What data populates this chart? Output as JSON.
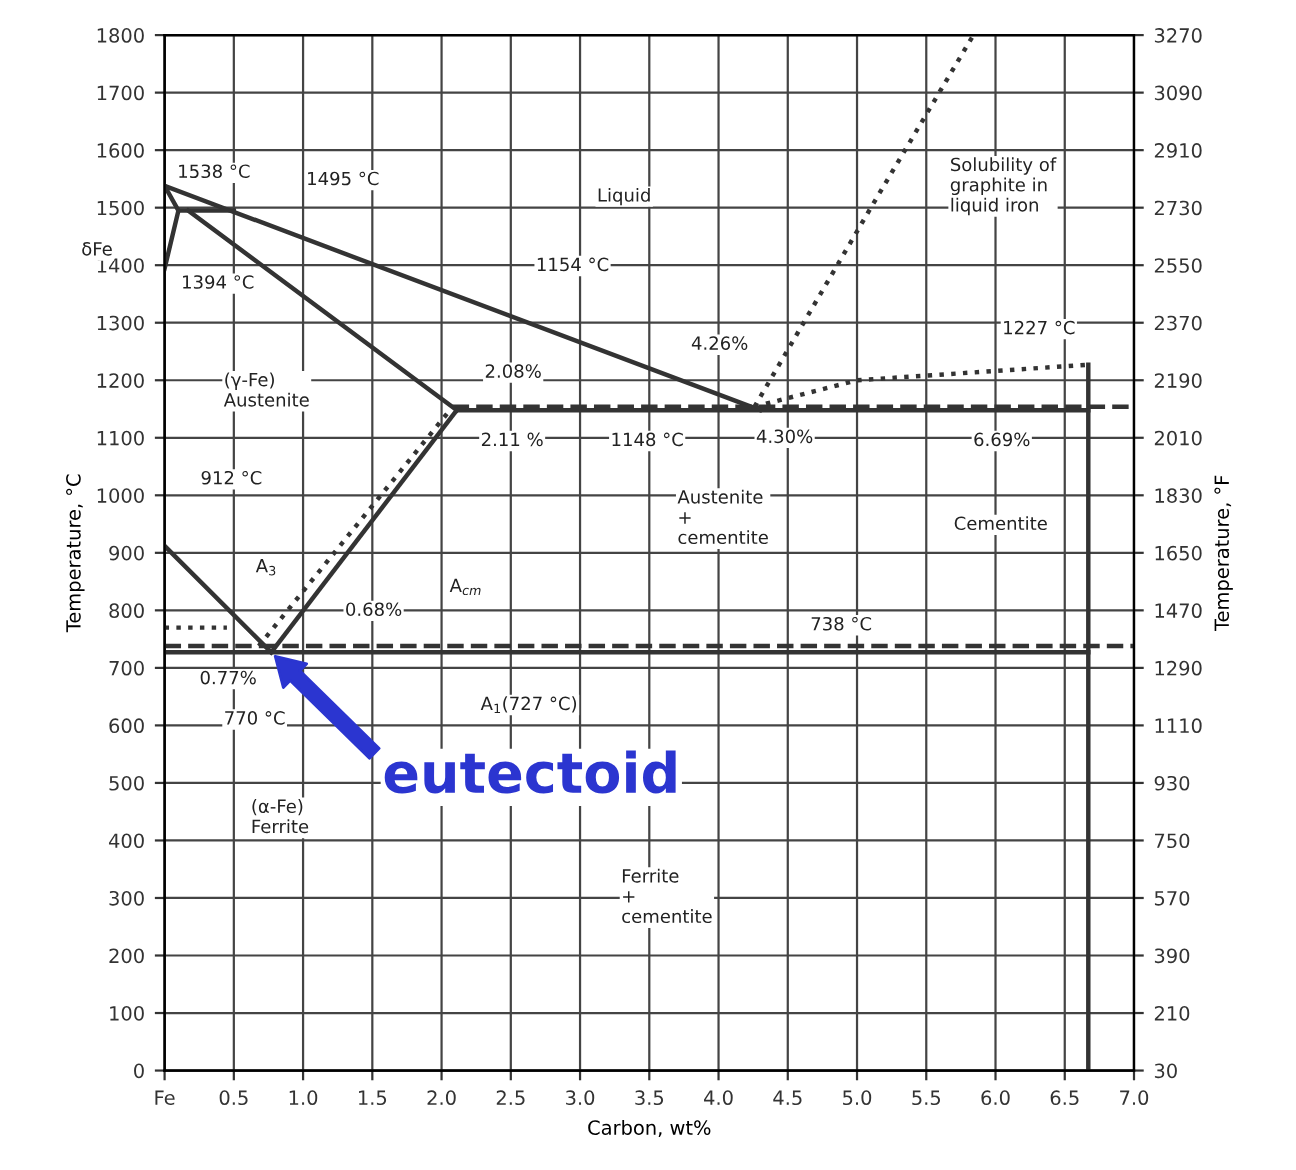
{
  "chart_data": {
    "type": "line",
    "xlabel": "Carbon, wt%",
    "ylabel": "Temperature, °C",
    "y2label": "Temperature, °F",
    "xlim": [
      0,
      7
    ],
    "ylim": [
      0,
      1800
    ],
    "y2lim": [
      30,
      3270
    ],
    "xticks": [
      {
        "value": 0,
        "label": "Fe"
      },
      0.5,
      {
        "value": 1,
        "label": "1.0"
      },
      1.5,
      {
        "value": 2,
        "label": "2.0"
      },
      2.5,
      {
        "value": 3,
        "label": "3.0"
      },
      3.5,
      {
        "value": 4,
        "label": "4.0"
      },
      4.5,
      {
        "value": 5,
        "label": "5.0"
      },
      5.5,
      {
        "value": 6,
        "label": "6.0"
      },
      6.5,
      {
        "value": 7,
        "label": "7.0"
      }
    ],
    "yticks": [
      0,
      100,
      200,
      300,
      400,
      500,
      600,
      700,
      800,
      900,
      1000,
      1100,
      1200,
      1300,
      1400,
      1500,
      1600,
      1700,
      1800
    ],
    "y2ticks": [
      30,
      210,
      390,
      570,
      750,
      930,
      1110,
      1290,
      1470,
      1650,
      1830,
      2010,
      2190,
      2370,
      2550,
      2730,
      2910,
      3090,
      3270
    ],
    "grid": true,
    "series": [
      {
        "color": "#333333",
        "line_style": "solid",
        "x": [
          0,
          4.3
        ],
        "values": [
          1538,
          1148
        ]
      },
      {
        "color": "#333333",
        "line_style": "solid",
        "x": [
          0,
          0.1,
          0
        ],
        "values": [
          1538,
          1495,
          1394
        ]
      },
      {
        "color": "#333333",
        "line_style": "solid",
        "x": [
          0.1,
          0.5
        ],
        "values": [
          1495,
          1495
        ]
      },
      {
        "color": "#333333",
        "line_style": "solid",
        "x": [
          0.17,
          2.11
        ],
        "values": [
          1495,
          1148
        ]
      },
      {
        "color": "#333333",
        "line_style": "solid",
        "x": [
          2.11,
          6.67
        ],
        "values": [
          1148,
          1148
        ]
      },
      {
        "color": "#333333",
        "line_style": "dashed",
        "x": [
          2.08,
          7.0
        ],
        "values": [
          1154,
          1154
        ]
      },
      {
        "color": "#333333",
        "line_style": "solid",
        "x": [
          0.77,
          2.11
        ],
        "values": [
          727,
          1148
        ]
      },
      {
        "color": "#333333",
        "line_style": "dotted",
        "x": [
          0.68,
          2.08
        ],
        "values": [
          738,
          1154
        ]
      },
      {
        "color": "#333333",
        "line_style": "solid",
        "x": [
          0,
          0.77
        ],
        "values": [
          912,
          727
        ]
      },
      {
        "color": "#333333",
        "line_style": "dotted",
        "x": [
          0,
          0.45
        ],
        "values": [
          770,
          770
        ]
      },
      {
        "color": "#333333",
        "line_style": "solid",
        "x": [
          0.02,
          6.67
        ],
        "values": [
          727,
          727
        ]
      },
      {
        "color": "#333333",
        "line_style": "dashed",
        "x": [
          0,
          7.0
        ],
        "values": [
          738,
          738
        ]
      },
      {
        "color": "#333333",
        "line_style": "solid",
        "x": [
          6.67,
          6.67
        ],
        "values": [
          0,
          1227
        ]
      },
      {
        "color": "#333333",
        "line_style": "dotted",
        "x": [
          4.26,
          5.0,
          6.67
        ],
        "values": [
          1154,
          1200,
          1227
        ]
      },
      {
        "color": "#333333",
        "line_style": "dotted",
        "x": [
          4.26,
          5.1,
          5.84
        ],
        "values": [
          1154,
          1500,
          1800
        ]
      }
    ],
    "annotations": [
      "1538 °C",
      "1495 °C",
      "δFe",
      "1394 °C",
      "Liquid",
      "1154 °C",
      "Solubility of\ngraphite in\nliquid iron",
      "4.26%",
      "1227 °C",
      "(γ-Fe)\nAustenite",
      "2.08%",
      "2.11 %",
      "1148 °C",
      "4.30%",
      "6.69%",
      "912 °C",
      "Austenite\n+\ncementite",
      "Cementite",
      "A$_{3}$",
      "A$_{cm}$",
      "0.68%",
      "738 °C",
      "0.77%",
      "770 °C",
      "A$_{1}$(727 °C)",
      "(α-Fe)\nFerrite",
      "Ferrite\n+\ncementite",
      {
        "text": "eutectoid",
        "x": 0.77,
        "y": 727
      }
    ]
  }
}
